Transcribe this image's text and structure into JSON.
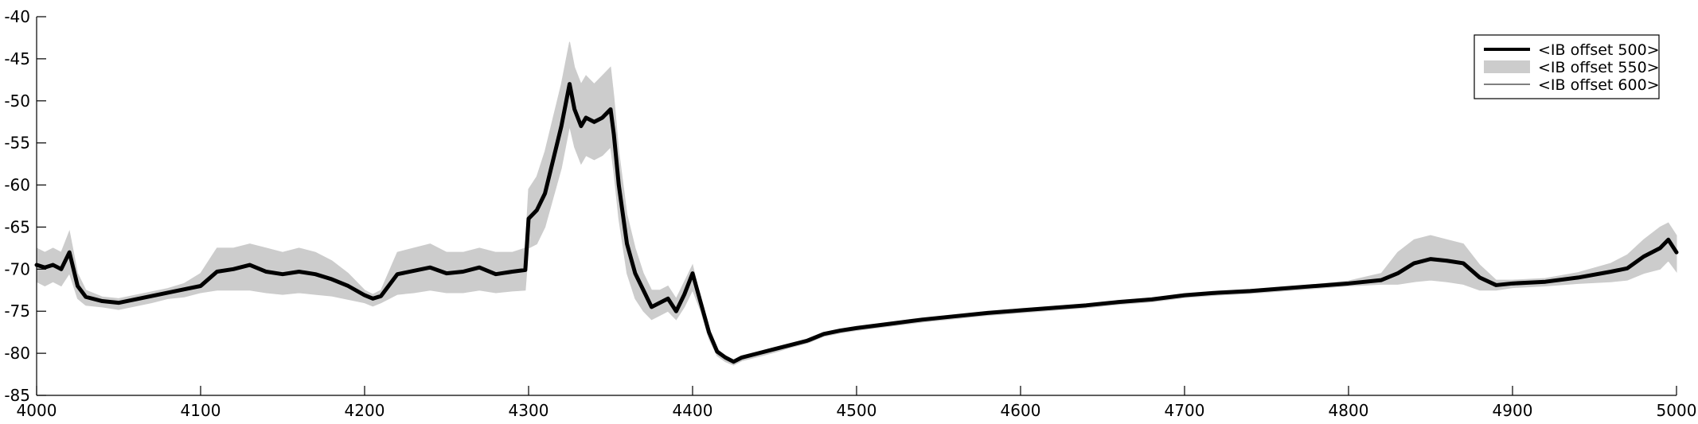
{
  "chart_data": {
    "type": "line",
    "title": "",
    "xlabel": "",
    "ylabel": "",
    "xlim": [
      4000,
      5000
    ],
    "ylim": [
      -85,
      -40
    ],
    "grid": false,
    "legend_placement": "top-right",
    "x_ticks": [
      4000,
      4100,
      4200,
      4300,
      4400,
      4500,
      4600,
      4700,
      4800,
      4900,
      5000
    ],
    "x_tick_labels": [
      "4000",
      "4100",
      "4200",
      "4300",
      "4400",
      "4500",
      "4600",
      "4700",
      "4800",
      "4900",
      "5000"
    ],
    "y_ticks": [
      -85,
      -80,
      -75,
      -70,
      -65,
      -60,
      -55,
      -50,
      -45,
      -40
    ],
    "y_tick_labels": [
      "-85",
      "-80",
      "-75",
      "-70",
      "-65",
      "-60",
      "-55",
      "-50",
      "-45",
      "-40"
    ],
    "series": [
      {
        "name": "<IB offset 500>",
        "style": "line",
        "color": "#000000",
        "x": [
          4000,
          4005,
          4010,
          4015,
          4020,
          4025,
          4030,
          4040,
          4050,
          4060,
          4070,
          4080,
          4090,
          4100,
          4110,
          4120,
          4130,
          4140,
          4150,
          4160,
          4170,
          4180,
          4190,
          4200,
          4205,
          4210,
          4220,
          4230,
          4240,
          4250,
          4260,
          4270,
          4280,
          4290,
          4298,
          4300,
          4305,
          4310,
          4315,
          4320,
          4325,
          4328,
          4332,
          4335,
          4340,
          4345,
          4350,
          4352,
          4355,
          4360,
          4365,
          4370,
          4375,
          4380,
          4385,
          4390,
          4395,
          4400,
          4405,
          4410,
          4415,
          4420,
          4425,
          4430,
          4440,
          4450,
          4460,
          4470,
          4480,
          4490,
          4500,
          4520,
          4540,
          4560,
          4580,
          4600,
          4620,
          4640,
          4660,
          4680,
          4700,
          4720,
          4740,
          4760,
          4780,
          4800,
          4820,
          4830,
          4840,
          4850,
          4860,
          4870,
          4880,
          4890,
          4900,
          4920,
          4940,
          4960,
          4970,
          4980,
          4990,
          4995,
          5000
        ],
        "y": [
          -69.5,
          -69.8,
          -69.5,
          -70,
          -68,
          -72,
          -73.3,
          -73.8,
          -74,
          -73.6,
          -73.2,
          -72.8,
          -72.4,
          -72,
          -70.3,
          -70,
          -69.5,
          -70.3,
          -70.6,
          -70.3,
          -70.6,
          -71.2,
          -72,
          -73.1,
          -73.5,
          -73.2,
          -70.6,
          -70.2,
          -69.8,
          -70.5,
          -70.3,
          -69.8,
          -70.6,
          -70.3,
          -70.1,
          -64,
          -63,
          -61,
          -57,
          -53,
          -48,
          -51,
          -53,
          -52,
          -52.5,
          -52,
          -51,
          -54,
          -60,
          -67,
          -70.5,
          -72.5,
          -74.5,
          -74,
          -73.5,
          -75,
          -73,
          -70.5,
          -74,
          -77.5,
          -79.8,
          -80.5,
          -81,
          -80.5,
          -80,
          -79.5,
          -79,
          -78.5,
          -77.7,
          -77.3,
          -77,
          -76.5,
          -76,
          -75.6,
          -75.2,
          -74.9,
          -74.6,
          -74.3,
          -73.9,
          -73.6,
          -73.1,
          -72.8,
          -72.6,
          -72.3,
          -72,
          -71.7,
          -71.3,
          -70.5,
          -69.3,
          -68.8,
          -69,
          -69.3,
          -71,
          -71.9,
          -71.7,
          -71.5,
          -71,
          -70.3,
          -69.9,
          -68.5,
          -67.5,
          -66.5,
          -68
        ]
      },
      {
        "name": "<IB offset 550>",
        "style": "band",
        "color": "#cccccc",
        "x": [
          4000,
          4005,
          4010,
          4015,
          4020,
          4025,
          4030,
          4040,
          4050,
          4060,
          4070,
          4080,
          4090,
          4100,
          4110,
          4120,
          4130,
          4140,
          4150,
          4160,
          4170,
          4180,
          4190,
          4200,
          4205,
          4210,
          4220,
          4230,
          4240,
          4250,
          4260,
          4270,
          4280,
          4290,
          4298,
          4300,
          4305,
          4310,
          4315,
          4320,
          4325,
          4328,
          4332,
          4335,
          4340,
          4345,
          4350,
          4352,
          4355,
          4360,
          4365,
          4370,
          4375,
          4380,
          4385,
          4390,
          4395,
          4400,
          4405,
          4410,
          4415,
          4420,
          4425,
          4430,
          4440,
          4450,
          4460,
          4470,
          4480,
          4490,
          4500,
          4520,
          4540,
          4560,
          4580,
          4600,
          4620,
          4640,
          4660,
          4680,
          4700,
          4720,
          4740,
          4760,
          4780,
          4800,
          4820,
          4830,
          4840,
          4850,
          4860,
          4870,
          4880,
          4890,
          4900,
          4920,
          4940,
          4960,
          4970,
          4980,
          4990,
          4995,
          5000
        ],
        "y_upper": [
          -67.5,
          -68,
          -67.5,
          -68,
          -65.5,
          -70.5,
          -72.5,
          -73.3,
          -73.5,
          -73.1,
          -72.7,
          -72.3,
          -71.7,
          -70.5,
          -67.5,
          -67.5,
          -67,
          -67.5,
          -68,
          -67.5,
          -68,
          -69,
          -70.5,
          -72.5,
          -73,
          -72.5,
          -68,
          -67.5,
          -67,
          -68,
          -68,
          -67.5,
          -68,
          -68,
          -67.5,
          -60.5,
          -59,
          -56,
          -52,
          -48,
          -43,
          -46,
          -48,
          -47,
          -48,
          -47,
          -46,
          -49.5,
          -56,
          -63.5,
          -67.5,
          -70.5,
          -72.5,
          -72.5,
          -72,
          -73.5,
          -71.5,
          -69.5,
          -73.5,
          -77,
          -79.5,
          -80.3,
          -80.8,
          -80.3,
          -79.8,
          -79.3,
          -78.8,
          -78.3,
          -77.5,
          -77.1,
          -76.8,
          -76.3,
          -75.8,
          -75.4,
          -75,
          -74.7,
          -74.4,
          -74.1,
          -73.7,
          -73.4,
          -72.9,
          -72.6,
          -72.4,
          -72.1,
          -71.8,
          -71.4,
          -70.5,
          -68,
          -66.5,
          -66,
          -66.5,
          -67,
          -69.5,
          -71.3,
          -71.3,
          -71.1,
          -70.4,
          -69.3,
          -68.3,
          -66.5,
          -65,
          -64.5,
          -66
        ],
        "y_lower": [
          -71.5,
          -72,
          -71.5,
          -72,
          -70.5,
          -73.5,
          -74.3,
          -74.5,
          -74.8,
          -74.4,
          -74,
          -73.5,
          -73.3,
          -72.8,
          -72.5,
          -72.5,
          -72.5,
          -72.8,
          -73,
          -72.8,
          -73,
          -73.2,
          -73.6,
          -74,
          -74.4,
          -74,
          -73,
          -72.8,
          -72.5,
          -72.8,
          -72.8,
          -72.5,
          -72.8,
          -72.6,
          -72.5,
          -67.5,
          -67,
          -65,
          -61.5,
          -58,
          -53,
          -55.5,
          -57.5,
          -56.5,
          -57,
          -56.5,
          -55.5,
          -58.5,
          -64,
          -70.5,
          -73.5,
          -75,
          -76,
          -75.5,
          -75,
          -76,
          -74.5,
          -72.5,
          -75,
          -78.3,
          -80.3,
          -81,
          -81.4,
          -80.9,
          -80.4,
          -79.9,
          -79.3,
          -78.8,
          -78,
          -77.6,
          -77.3,
          -76.8,
          -76.3,
          -75.9,
          -75.5,
          -75.2,
          -74.9,
          -74.6,
          -74.2,
          -73.9,
          -73.4,
          -73.1,
          -72.9,
          -72.6,
          -72.3,
          -72,
          -71.8,
          -71.8,
          -71.5,
          -71.3,
          -71.5,
          -71.8,
          -72.5,
          -72.5,
          -72.2,
          -72,
          -71.7,
          -71.5,
          -71.3,
          -70.5,
          -70,
          -69,
          -70.3
        ]
      },
      {
        "name": "<IB offset 600>",
        "style": "thin-line",
        "color": "#000000",
        "x": [
          4000,
          4005,
          4010,
          4015,
          4020,
          4025,
          4030,
          4040,
          4050,
          4060,
          4070,
          4080,
          4090,
          4100,
          4110,
          4120,
          4130,
          4140,
          4150,
          4160,
          4170,
          4180,
          4190,
          4200,
          4205,
          4210,
          4220,
          4230,
          4240,
          4250,
          4260,
          4270,
          4280,
          4290,
          4298,
          4300,
          4305,
          4310,
          4315,
          4320,
          4325,
          4328,
          4332,
          4335,
          4340,
          4345,
          4350,
          4352,
          4355,
          4360,
          4365,
          4370,
          4375,
          4380,
          4385,
          4390,
          4395,
          4400,
          4405,
          4410,
          4415,
          4420,
          4425,
          4430,
          4440,
          4450,
          4460,
          4470,
          4480,
          4490,
          4500,
          4520,
          4540,
          4560,
          4580,
          4600,
          4620,
          4640,
          4660,
          4680,
          4700,
          4720,
          4740,
          4760,
          4780,
          4800,
          4820,
          4830,
          4840,
          4850,
          4860,
          4870,
          4880,
          4890,
          4900,
          4920,
          4940,
          4960,
          4970,
          4980,
          4990,
          4995,
          5000
        ],
        "y": [
          -69.6,
          -69.9,
          -69.6,
          -70.1,
          -68.2,
          -72.1,
          -73.4,
          -73.9,
          -74.1,
          -73.7,
          -73.3,
          -72.9,
          -72.5,
          -72.1,
          -70.4,
          -70.1,
          -69.6,
          -70.4,
          -70.7,
          -70.4,
          -70.7,
          -71.3,
          -72.1,
          -73.2,
          -73.6,
          -73.3,
          -70.7,
          -70.3,
          -69.9,
          -70.6,
          -70.4,
          -69.9,
          -70.7,
          -70.4,
          -70.2,
          -64.2,
          -63.2,
          -61.2,
          -57.2,
          -53.2,
          -48.3,
          -51.2,
          -53.2,
          -52.2,
          -52.7,
          -52.2,
          -51.2,
          -54.2,
          -60.2,
          -67.2,
          -70.6,
          -72.6,
          -74.6,
          -74.1,
          -73.6,
          -75.1,
          -73.1,
          -70.6,
          -74.1,
          -77.6,
          -79.9,
          -80.6,
          -81.1,
          -80.6,
          -80.1,
          -79.6,
          -79.1,
          -78.6,
          -77.8,
          -77.4,
          -77.1,
          -76.6,
          -76.1,
          -75.7,
          -75.3,
          -75,
          -74.7,
          -74.4,
          -74,
          -73.7,
          -73.2,
          -72.9,
          -72.7,
          -72.4,
          -72.1,
          -71.8,
          -71.4,
          -70.6,
          -69.4,
          -68.9,
          -69.1,
          -69.4,
          -71.1,
          -72,
          -71.8,
          -71.6,
          -71.1,
          -70.4,
          -70,
          -68.6,
          -67.6,
          -66.6,
          -68.1
        ]
      }
    ]
  }
}
